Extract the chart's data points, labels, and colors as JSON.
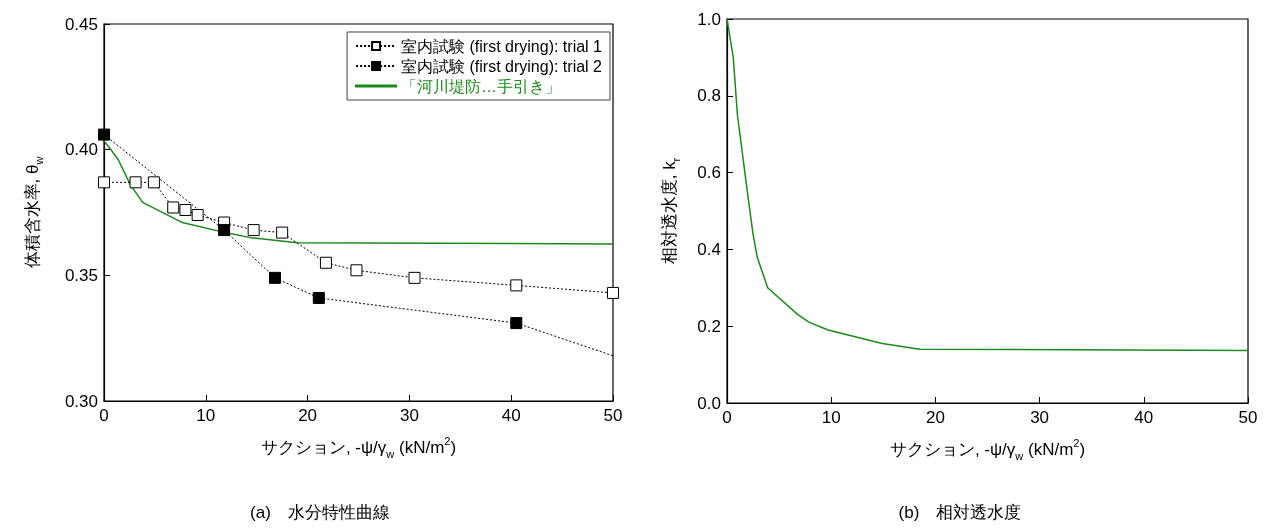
{
  "chart_data": [
    {
      "type": "line",
      "title": "(a)　水分特性曲線",
      "xlabel": "サクション, -ψ/γ$_{w}$ (kN/m$^{2}$)",
      "ylabel": "体積含水率, θ$_{w}$",
      "xlim": [
        0,
        50
      ],
      "xticks": [
        0,
        10,
        20,
        30,
        40,
        50
      ],
      "ylim": [
        0.3,
        0.45
      ],
      "yticks": [
        {
          "value": 0.3,
          "label": "0.30"
        },
        0.35,
        {
          "value": 0.4,
          "label": "0.40"
        },
        0.45
      ],
      "grid": false,
      "legend": "top right",
      "series": [
        {
          "name": "室内試験 (first drying): trial 1",
          "color": "#ffffff",
          "marker": "square",
          "line_style": "dotted",
          "x": [
            0,
            3.1,
            4.9,
            6.8,
            8.0,
            9.2,
            11.8,
            14.7,
            17.5,
            21.8,
            24.8,
            30.5,
            40.5,
            50
          ],
          "values": [
            0.387,
            0.387,
            0.387,
            0.377,
            0.376,
            0.374,
            0.371,
            0.368,
            0.367,
            0.355,
            0.352,
            0.349,
            0.346,
            0.343
          ]
        },
        {
          "name": "室内試験 (first drying): trial 2",
          "color": "#000000",
          "marker": "square",
          "line_style": "dotted",
          "x": [
            0,
            11.8,
            16.8,
            21.1,
            40.5
          ],
          "values": [
            0.406,
            0.368,
            0.349,
            0.341,
            0.331
          ]
        },
        {
          "color": "#000000",
          "marker": "none",
          "line_style": "dotted",
          "x": [
            40.5,
            50
          ],
          "values": [
            0.331,
            0.318
          ]
        },
        {
          "name": "「河川堤防…手引き」",
          "color": "#1a8a1a",
          "marker": "none",
          "line_style": "solid",
          "x": [
            0,
            0.5,
            1.4,
            2.6,
            3.8,
            7.7,
            11.9,
            14.4,
            19,
            50
          ],
          "values": [
            0.4035,
            0.401,
            0.396,
            0.386,
            0.379,
            0.371,
            0.367,
            0.365,
            0.363,
            0.3625
          ]
        }
      ]
    },
    {
      "type": "line",
      "title": "(b)　相対透水度",
      "xlabel": "サクション, -ψ/γ$_{w}$ (kN/m$^{2}$)",
      "ylabel": "相対透水度, k$_{r}$",
      "xlim": [
        0,
        50
      ],
      "xticks": [
        0,
        10,
        20,
        30,
        40,
        50
      ],
      "ylim": [
        0,
        1
      ],
      "yticks": [
        {
          "value": 0,
          "label": "0.0"
        },
        0.2,
        0.4,
        0.6,
        0.8,
        {
          "value": 1,
          "label": "1.0"
        }
      ],
      "grid": false,
      "legend": false,
      "series": [
        {
          "color": "#1a8a1a",
          "marker": "none",
          "line_style": "solid",
          "x": [
            0,
            0.6,
            1.0,
            2.0,
            2.5,
            2.9,
            3.9,
            6.8,
            7.9,
            9.7,
            14.9,
            18.5,
            50
          ],
          "values": [
            1.0,
            0.9,
            0.75,
            0.54,
            0.44,
            0.38,
            0.3,
            0.23,
            0.21,
            0.19,
            0.155,
            0.14,
            0.137
          ]
        }
      ]
    }
  ]
}
